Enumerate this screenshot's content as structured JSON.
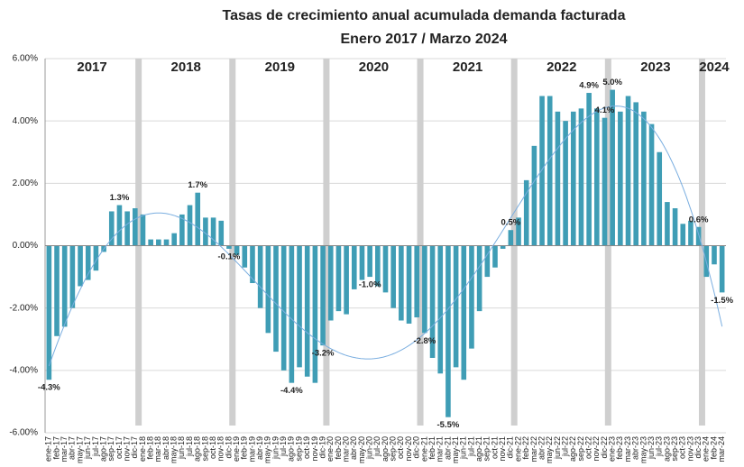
{
  "chart_data": {
    "type": "bar",
    "title": "Tasas de crecimiento anual acumulada demanda facturada",
    "subtitle": "Enero 2017 / Marzo 2024",
    "categories": [
      "ene-17",
      "feb-17",
      "mar-17",
      "abr-17",
      "may-17",
      "jun-17",
      "jul-17",
      "ago-17",
      "sep-17",
      "oct-17",
      "nov-17",
      "dic-17",
      "ene-18",
      "feb-18",
      "mar-18",
      "abr-18",
      "may-18",
      "jun-18",
      "jul-18",
      "ago-18",
      "sep-18",
      "oct-18",
      "nov-18",
      "dic-18",
      "ene-19",
      "feb-19",
      "mar-19",
      "abr-19",
      "may-19",
      "jun-19",
      "jul-19",
      "ago-19",
      "sep-19",
      "oct-19",
      "nov-19",
      "dic-19",
      "ene-20",
      "feb-20",
      "mar-20",
      "abr-20",
      "may-20",
      "jun-20",
      "jul-20",
      "ago-20",
      "sep-20",
      "oct-20",
      "nov-20",
      "dic-20",
      "ene-21",
      "feb-21",
      "mar-21",
      "abr-21",
      "may-21",
      "jun-21",
      "jul-21",
      "ago-21",
      "sep-21",
      "oct-21",
      "nov-21",
      "dic-21",
      "ene-22",
      "feb-22",
      "mar-22",
      "abr-22",
      "may-22",
      "jun-22",
      "jul-22",
      "ago-22",
      "sep-22",
      "oct-22",
      "nov-22",
      "dic-22",
      "ene-23",
      "feb-23",
      "mar-23",
      "abr-23",
      "may-23",
      "jun-23",
      "jul-23",
      "ago-23",
      "sep-23",
      "oct-23",
      "nov-23",
      "dic-23",
      "ene-24",
      "feb-24",
      "mar-24"
    ],
    "values": [
      -4.3,
      -2.9,
      -2.6,
      -2.0,
      -1.3,
      -1.1,
      -0.8,
      -0.2,
      1.1,
      1.3,
      1.1,
      1.2,
      1.0,
      0.2,
      0.2,
      0.2,
      0.4,
      1.0,
      1.3,
      1.7,
      0.9,
      0.9,
      0.8,
      -0.1,
      -0.3,
      -0.7,
      -1.2,
      -2.0,
      -2.8,
      -3.4,
      -4.0,
      -4.4,
      -3.9,
      -4.2,
      -4.4,
      -3.2,
      -2.4,
      -2.1,
      -2.2,
      -1.4,
      -1.1,
      -1.0,
      -1.3,
      -1.5,
      -2.0,
      -2.4,
      -2.5,
      -2.3,
      -2.8,
      -3.6,
      -4.1,
      -5.5,
      -3.9,
      -4.3,
      -3.3,
      -2.1,
      -1.0,
      -0.7,
      -0.1,
      0.5,
      0.9,
      2.1,
      3.2,
      4.8,
      4.8,
      4.3,
      4.0,
      4.3,
      4.4,
      4.9,
      4.4,
      4.1,
      5.0,
      4.3,
      4.8,
      4.6,
      4.3,
      3.9,
      3.0,
      1.4,
      1.2,
      0.7,
      0.8,
      0.6,
      -1.0,
      -0.6,
      -1.5
    ],
    "value_labels": [
      "-4.3%",
      null,
      null,
      null,
      null,
      null,
      null,
      null,
      null,
      "1.3%",
      null,
      null,
      null,
      null,
      null,
      null,
      null,
      null,
      null,
      "1.7%",
      null,
      null,
      null,
      "-0.1%",
      null,
      null,
      null,
      null,
      null,
      null,
      null,
      "-4.4%",
      null,
      null,
      null,
      "-3.2%",
      null,
      null,
      null,
      null,
      null,
      "-1.0%",
      null,
      null,
      null,
      null,
      null,
      null,
      "-2.8%",
      null,
      null,
      "-5.5%",
      null,
      null,
      null,
      null,
      null,
      null,
      null,
      "0.5%",
      null,
      null,
      null,
      null,
      null,
      null,
      null,
      null,
      null,
      "4.9%",
      null,
      "4.1%",
      "5.0%",
      null,
      null,
      null,
      null,
      null,
      null,
      null,
      null,
      null,
      null,
      "0.6%",
      null,
      null,
      "-1.5%"
    ],
    "year_labels": [
      "2017",
      "2018",
      "2019",
      "2020",
      "2021",
      "2022",
      "2023",
      "2024"
    ],
    "color": "#3f9db5",
    "separator_color": "#cfcfcf",
    "trendline": true,
    "trendline_color": "#7aaee0",
    "ylim": [
      -6,
      6
    ],
    "yticks": [
      {
        "value": -6,
        "label": "-6.00%"
      },
      {
        "value": -4,
        "label": "-4.00%"
      },
      {
        "value": -2,
        "label": "-2.00%"
      },
      {
        "value": 0,
        "label": "0.00%"
      },
      {
        "value": 2,
        "label": "2.00%"
      },
      {
        "value": 4,
        "label": "4.00%"
      },
      {
        "value": 6,
        "label": "6.00%"
      }
    ],
    "grid": true
  }
}
